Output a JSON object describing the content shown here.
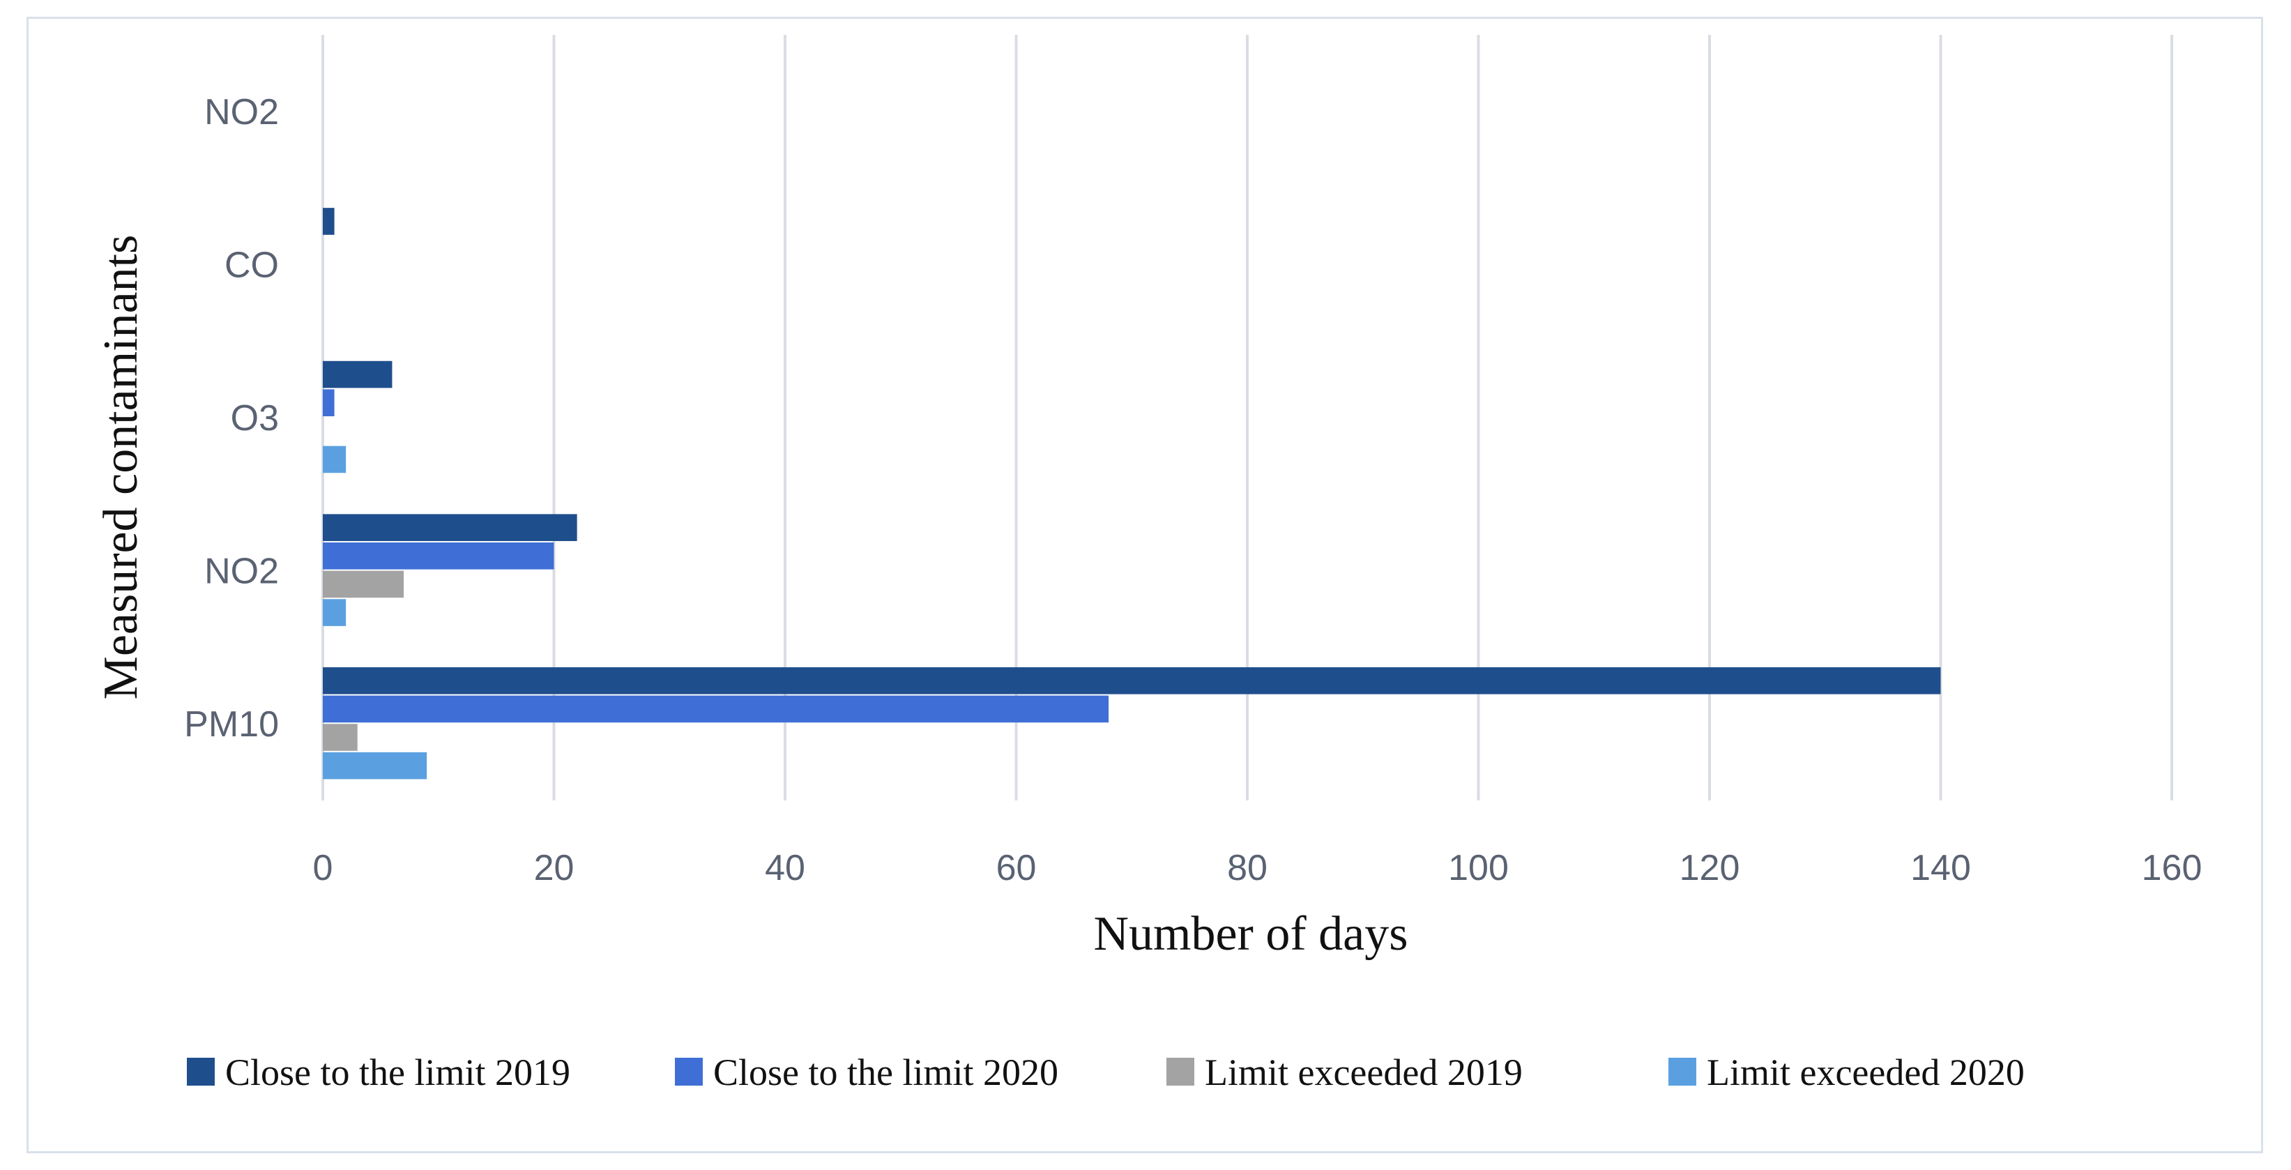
{
  "chart_data": {
    "type": "bar",
    "orientation": "horizontal",
    "categories": [
      "PM10",
      "NO2",
      "O3",
      "CO",
      "NO2"
    ],
    "series": [
      {
        "name": "Close to the limit 2019",
        "color": "#1f4e8c",
        "values": [
          140,
          22,
          6,
          1,
          0
        ]
      },
      {
        "name": "Close to the limit 2020",
        "color": "#3f6fd6",
        "values": [
          68,
          20,
          1,
          0,
          0
        ]
      },
      {
        "name": "Limit exceeded 2019",
        "color": "#a3a3a3",
        "values": [
          3,
          7,
          0,
          0,
          0
        ]
      },
      {
        "name": "Limit exceeded 2020",
        "color": "#5aa0e0",
        "values": [
          9,
          2,
          2,
          0,
          0
        ]
      }
    ],
    "xlabel": "Number of days",
    "ylabel": "Measured contaminants",
    "xlim": [
      0,
      160
    ],
    "xticks": [
      "0",
      "20",
      "40",
      "60",
      "80",
      "100",
      "120",
      "140",
      "160"
    ],
    "grid": "vertical",
    "legend_position": "bottom"
  }
}
